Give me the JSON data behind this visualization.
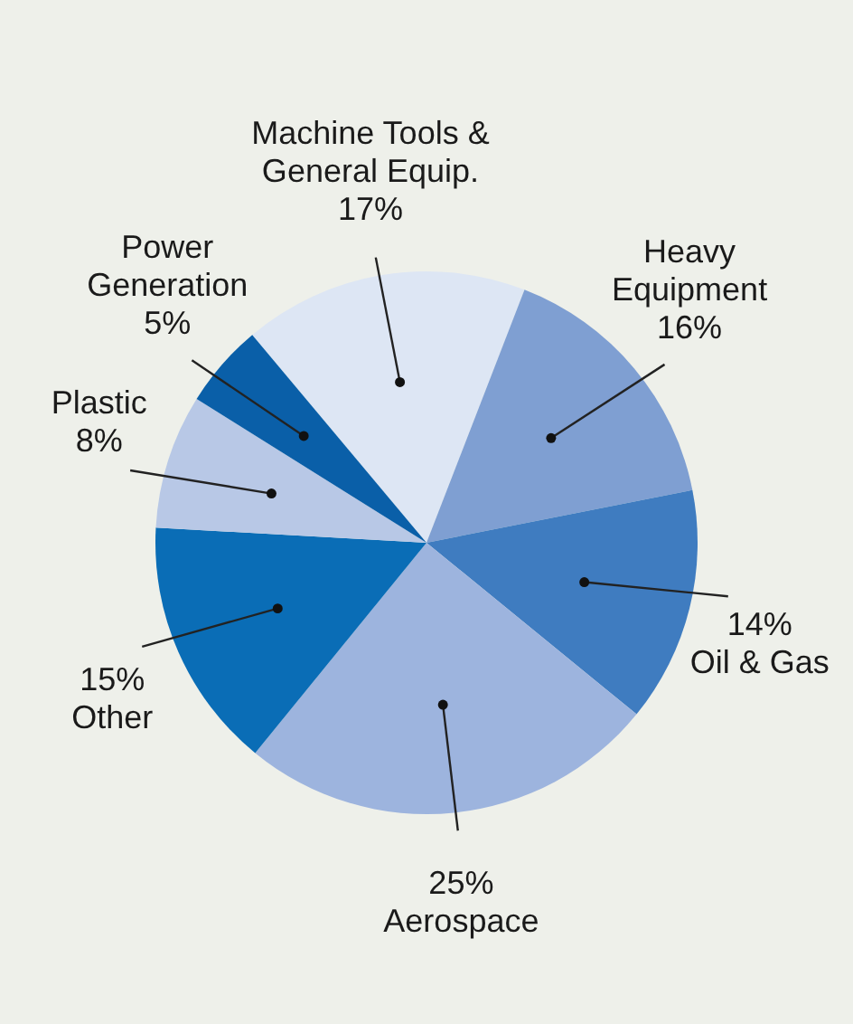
{
  "chart_data": {
    "type": "pie",
    "categories": [
      "Machine Tools &\nGeneral Equip.",
      "Heavy\nEquipment",
      "Oil & Gas",
      "Aerospace",
      "Other",
      "Plastic",
      "Power\nGeneration"
    ],
    "values": [
      17,
      16,
      14,
      25,
      15,
      8,
      5
    ],
    "value_labels": [
      "17%",
      "16%",
      "14%",
      "25%",
      "15%",
      "8%",
      "5%"
    ],
    "colors": [
      "#dde6f4",
      "#7f9fd2",
      "#3f7cc0",
      "#9db4de",
      "#0a6db6",
      "#b8c8e6",
      "#0a5fa8"
    ]
  }
}
